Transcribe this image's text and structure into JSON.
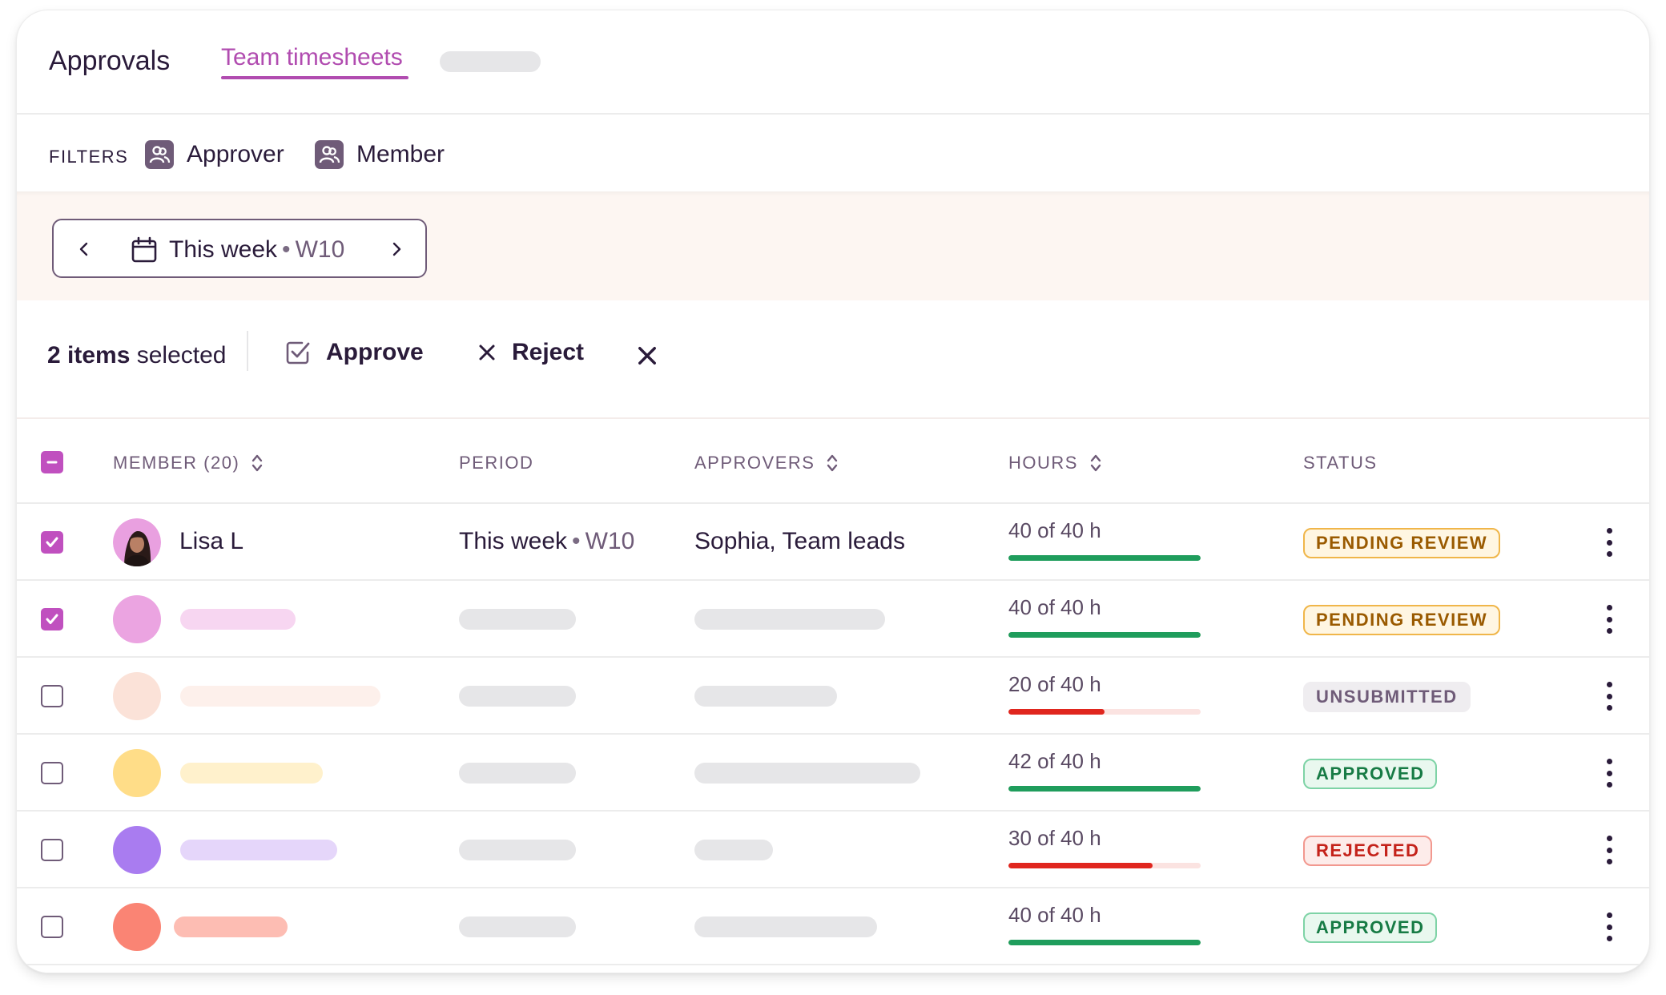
{
  "tabs": {
    "title": "Approvals",
    "active": "Team timesheets"
  },
  "filters": {
    "label": "FILTERS",
    "items": [
      {
        "label": "Approver",
        "icon": "people-icon"
      },
      {
        "label": "Member",
        "icon": "people-icon"
      }
    ]
  },
  "week_picker": {
    "label": "This week",
    "week": "W10"
  },
  "selection": {
    "count": "2 items",
    "suffix": " selected",
    "approve": "Approve",
    "reject": "Reject"
  },
  "table": {
    "columns": {
      "member": "MEMBER (20)",
      "period": "PERIOD",
      "approvers": "APPROVERS",
      "hours": "HOURS",
      "status": "STATUS"
    },
    "rows": [
      {
        "checked": true,
        "name": "Lisa L",
        "period": "This week",
        "period_week": "W10",
        "approvers": "Sophia, Team leads",
        "hours_text": "40 of 40 h",
        "hours_fraction": 1.0,
        "status": "PENDING REVIEW",
        "status_kind": "pending",
        "avatar_color": "#e9a0e0"
      },
      {
        "checked": true,
        "hours_text": "40 of 40 h",
        "hours_fraction": 1.0,
        "status": "PENDING REVIEW",
        "status_kind": "pending",
        "avatar_color": "#eba4e1",
        "name_skel_color": "#f7d6f1"
      },
      {
        "checked": false,
        "hours_text": "20 of 40 h",
        "hours_fraction": 0.5,
        "status": "UNSUBMITTED",
        "status_kind": "unsubmitted",
        "avatar_color": "#fbe2d8",
        "name_skel_color": "#fdf0eb"
      },
      {
        "checked": false,
        "hours_text": "42 of 40 h",
        "hours_fraction": 1.0,
        "status": "APPROVED",
        "status_kind": "approved",
        "avatar_color": "#ffdd88",
        "name_skel_color": "#fff1cc"
      },
      {
        "checked": false,
        "hours_text": "30 of 40 h",
        "hours_fraction": 0.75,
        "status": "REJECTED",
        "status_kind": "rejected",
        "avatar_color": "#a97cf0",
        "name_skel_color": "#e5d6fa"
      },
      {
        "checked": false,
        "hours_text": "40 of 40 h",
        "hours_fraction": 1.0,
        "status": "APPROVED",
        "status_kind": "approved",
        "avatar_color": "#fa8474",
        "name_skel_color": "#fdbdb3"
      }
    ]
  },
  "colors": {
    "accent": "#b14cb0",
    "checkbox": "#c050bf",
    "progress_full": "#1f9d5c",
    "progress_partial": "#e0261e",
    "pending_border": "#f0b64a",
    "pending_bg": "#fff6e2",
    "pending_text": "#9a5a00",
    "approved_border": "#7ed3a6",
    "approved_bg": "#e9f8ef",
    "approved_text": "#177b45",
    "rejected_border": "#f2988f",
    "rejected_bg": "#fdecea",
    "rejected_text": "#c4221a",
    "unsubmitted_bg": "#efedf0",
    "unsubmitted_text": "#6f5b78"
  }
}
